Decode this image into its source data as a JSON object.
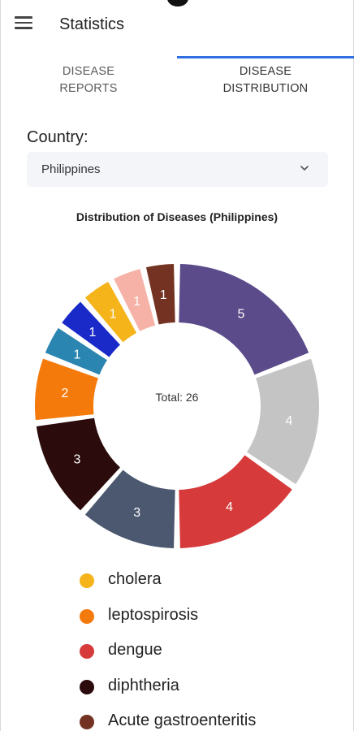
{
  "app": {
    "title": "Statistics"
  },
  "tabs": [
    {
      "label": "DISEASE\nREPORTS",
      "active": false
    },
    {
      "label": "DISEASE\nDISTRIBUTION",
      "active": true
    }
  ],
  "filter": {
    "label": "Country:",
    "selected": "Philippines"
  },
  "colors": {
    "accent": "#2f6fe0"
  },
  "chart_data": {
    "type": "pie",
    "title": "Distribution of Diseases (Philippines)",
    "center_label": "Total: 26",
    "slices": [
      {
        "value": 5,
        "label": "5",
        "color": "#5b4b8a"
      },
      {
        "value": 4,
        "label": "4",
        "color": "#c4c4c4"
      },
      {
        "value": 4,
        "label": "4",
        "color": "#d63a3a"
      },
      {
        "value": 3,
        "label": "3",
        "color": "#4b5870"
      },
      {
        "value": 3,
        "label": "3",
        "color": "#2b0b0b"
      },
      {
        "value": 2,
        "label": "2",
        "color": "#f47a0c",
        "name": "leptospirosis"
      },
      {
        "value": 1,
        "label": "1",
        "color": "#2a86b0"
      },
      {
        "value": 1,
        "label": "1",
        "color": "#1a2ac8"
      },
      {
        "value": 1,
        "label": "1",
        "color": "#f4b41a",
        "name": "cholera"
      },
      {
        "value": 1,
        "label": "1",
        "color": "#f7b2a7"
      },
      {
        "value": 1,
        "label": "1",
        "color": "#743223",
        "name": "Acute gastroenteritis"
      }
    ]
  },
  "legend": [
    {
      "label": "cholera",
      "color": "#f4b41a"
    },
    {
      "label": "leptospirosis",
      "color": "#f47a0c"
    },
    {
      "label": "dengue",
      "color": "#d63a3a"
    },
    {
      "label": "diphtheria",
      "color": "#2b0b0b"
    },
    {
      "label": "Acute gastroenteritis",
      "color": "#743223"
    }
  ]
}
